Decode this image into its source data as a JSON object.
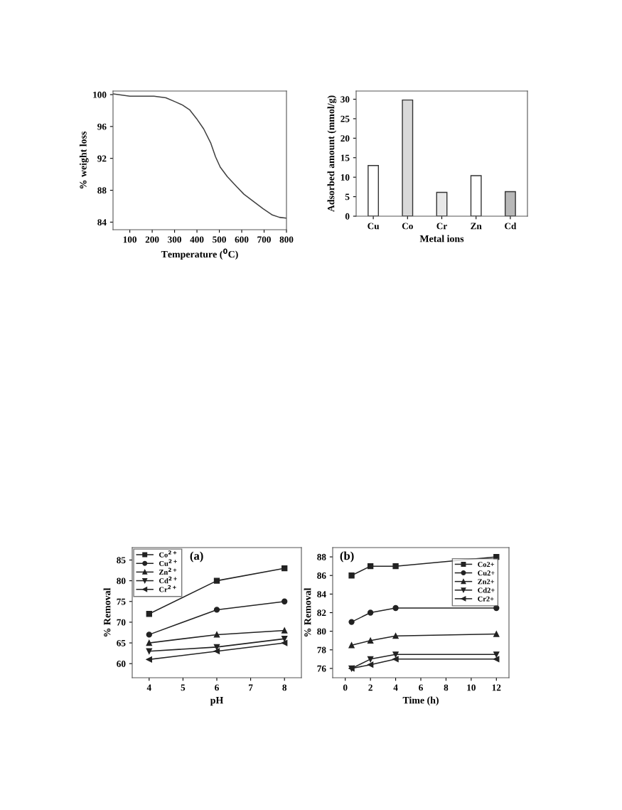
{
  "chart_data": [
    {
      "type": "line",
      "xlabel": "Temperature ($^{0}$C)",
      "ylabel": "% weight loss",
      "xlim": [
        25,
        800
      ],
      "ylim": [
        83.05,
        100.45
      ],
      "xticks": [
        100,
        200,
        300,
        400,
        500,
        600,
        700,
        800
      ],
      "yticks": [
        84,
        88,
        92,
        96,
        100
      ],
      "grid": false,
      "legend": false,
      "marker": "none",
      "series": [
        {
          "color": "#404040",
          "x": [
            25,
            100,
            176,
            208,
            261,
            303,
            335,
            367,
            398,
            430,
            462,
            483,
            504,
            536,
            579,
            610,
            652,
            695,
            737,
            769,
            800
          ],
          "values": [
            100.1,
            99.8,
            99.8,
            99.8,
            99.6,
            99.1,
            98.7,
            98.1,
            97,
            95.7,
            93.9,
            92.2,
            90.9,
            89.7,
            88.4,
            87.5,
            86.6,
            85.7,
            84.9,
            84.6,
            84.5
          ]
        }
      ]
    },
    {
      "type": "bar",
      "xlabel": "Metal ions",
      "ylabel": "Adsorbed amount (mmol/g)",
      "categories": [
        "Cu",
        "Co",
        "Cr",
        "Zn",
        "Cd"
      ],
      "values": [
        13,
        29.8,
        6.1,
        10.4,
        6.3
      ],
      "colors": [
        "#ffffff",
        "#d9d9d9",
        "#e8e8e8",
        "#ffffff",
        "#b8b8b8"
      ],
      "ylim": [
        0,
        32.1
      ],
      "yticks": [
        0,
        5,
        10,
        15,
        20,
        25,
        30
      ],
      "grid": false,
      "legend": false
    },
    {
      "type": "line",
      "xlabel": "pH",
      "ylabel": "% Removal",
      "annotations": [
        "(a)"
      ],
      "xlim": [
        3.5,
        8.5
      ],
      "ylim": [
        56.6,
        88
      ],
      "xticks": [
        4,
        5,
        6,
        7,
        8
      ],
      "yticks": [
        60,
        65,
        70,
        75,
        80,
        85
      ],
      "grid": false,
      "legend": "top left",
      "series": [
        {
          "name": "Co$^{2+}$",
          "color": "#222222",
          "marker": "square",
          "x": [
            4,
            6,
            8
          ],
          "values": [
            72,
            80,
            83
          ]
        },
        {
          "name": "Cu$^{2+}$",
          "color": "#222222",
          "marker": "circle",
          "x": [
            4,
            6,
            8
          ],
          "values": [
            67,
            73,
            75
          ]
        },
        {
          "name": "Zn$^{2+}$",
          "color": "#222222",
          "marker": "triangle",
          "x": [
            4,
            6,
            8
          ],
          "values": [
            65,
            67,
            68
          ]
        },
        {
          "name": "Cd$^{2+}$",
          "color": "#222222",
          "marker": "triangle-down",
          "x": [
            4,
            6,
            8
          ],
          "values": [
            63,
            64,
            66
          ]
        },
        {
          "name": "Cr$^{2+}$",
          "color": "#222222",
          "marker": "triangle-left",
          "x": [
            4,
            6,
            8
          ],
          "values": [
            61,
            63,
            65
          ]
        }
      ]
    },
    {
      "type": "line",
      "xlabel": "Time (h)",
      "ylabel": "% Removal",
      "annotations": [
        "(b)"
      ],
      "xlim": [
        -1,
        13
      ],
      "ylim": [
        75,
        89
      ],
      "xticks": [
        0,
        2,
        4,
        6,
        8,
        10,
        12
      ],
      "yticks": [
        76,
        78,
        80,
        82,
        84,
        86,
        88
      ],
      "grid": false,
      "legend": "top right",
      "series": [
        {
          "name": "Co2+",
          "color": "#222222",
          "marker": "square",
          "x": [
            0.5,
            2,
            4,
            12
          ],
          "values": [
            86,
            87,
            87,
            88
          ]
        },
        {
          "name": "Cu2+",
          "color": "#222222",
          "marker": "circle",
          "x": [
            0.5,
            2,
            4,
            12
          ],
          "values": [
            81,
            82,
            82.5,
            82.5
          ]
        },
        {
          "name": "Zn2+",
          "color": "#222222",
          "marker": "triangle",
          "x": [
            0.5,
            2,
            4,
            12
          ],
          "values": [
            78.5,
            79,
            79.5,
            79.7
          ]
        },
        {
          "name": "Cd2+",
          "color": "#222222",
          "marker": "triangle-down",
          "x": [
            0.5,
            2,
            4,
            12
          ],
          "values": [
            76,
            77,
            77.5,
            77.5
          ]
        },
        {
          "name": "Cr2+",
          "color": "#222222",
          "marker": "triangle-left",
          "x": [
            0.5,
            2,
            4,
            12
          ],
          "values": [
            76,
            76.4,
            77,
            77
          ]
        }
      ]
    }
  ]
}
